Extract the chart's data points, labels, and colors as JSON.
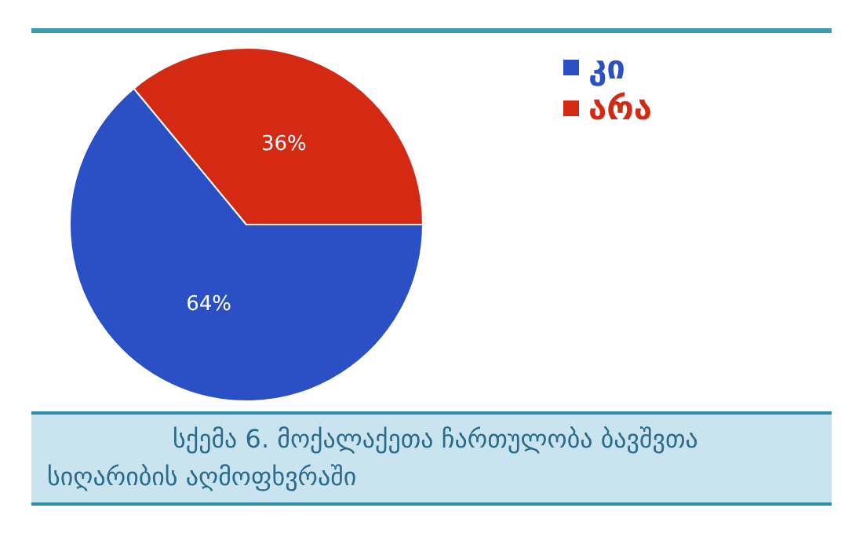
{
  "chart_data": {
    "type": "pie",
    "title": "სქემა 6. მოქალაქეთა ჩართულობა ბავშვთა სიღარიბის აღმოფხვრაში",
    "categories": [
      "კი",
      "არა"
    ],
    "values": [
      64,
      36
    ],
    "value_labels": [
      "64%",
      "36%"
    ],
    "colors": [
      "#2b4fc4",
      "#d42a13"
    ],
    "legend": "top right"
  }
}
